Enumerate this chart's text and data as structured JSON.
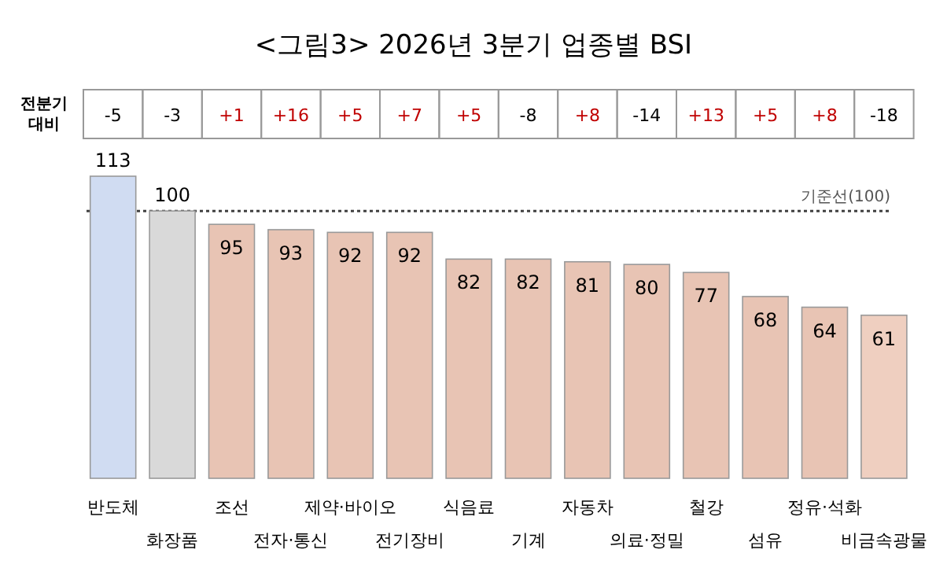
{
  "chart_data": {
    "type": "bar",
    "title": "<그림3> 2026년 3분기 업종별 BSI",
    "categories": [
      "반도체",
      "화장품",
      "조선",
      "전자·통신",
      "제약·바이오",
      "전기장비",
      "식음료",
      "기계",
      "자동차",
      "의료·정밀",
      "철강",
      "섬유",
      "정유·석화",
      "비금속광물"
    ],
    "values": [
      113,
      100,
      95,
      93,
      92,
      92,
      82,
      82,
      81,
      80,
      77,
      68,
      64,
      61
    ],
    "colors": [
      "#d0dcf2",
      "#d9d9d9",
      "#e8c4b4",
      "#e8c4b4",
      "#e8c4b4",
      "#e8c4b4",
      "#e8c4b4",
      "#e8c4b4",
      "#e8c4b4",
      "#e8c4b4",
      "#e8c4b4",
      "#e8c4b4",
      "#e8c4b4",
      "#efcfc0"
    ],
    "data_labels": true,
    "ref_lines": [
      {
        "axis": "y",
        "value": 100,
        "label": "기준선(100)",
        "line_style": "dotted",
        "color": "#404040"
      }
    ],
    "annotations": [
      "전분기 대비",
      "-5",
      "-3",
      "+1",
      "+16",
      "+5",
      "+7",
      "+5",
      "-8",
      "+8",
      "-14",
      "+13",
      "+5",
      "+8",
      "-18"
    ]
  }
}
